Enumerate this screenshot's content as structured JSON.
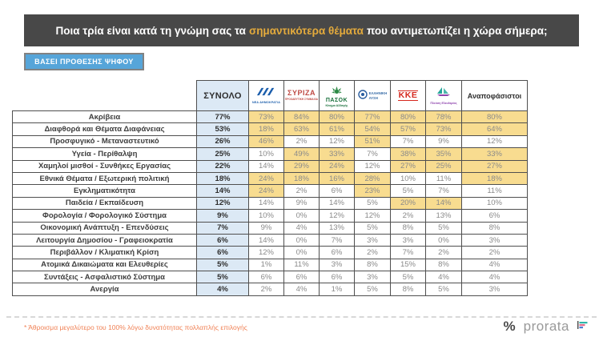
{
  "title": {
    "pre": "Ποια τρία είναι κατά τη γνώμη σας τα",
    "highlight": "σημαντικότερα θέματα",
    "post": "που αντιμετωπίζει η χώρα σήμερα;"
  },
  "filter_button_label": "ΒΑΣΕΙ ΠΡΟΘΕΣΗΣ ΨΗΦΟΥ",
  "colors": {
    "title_bar_bg": "#484848",
    "title_highlight": "#e3aa3c",
    "button_blue": "#56a5d9",
    "total_column_bg": "#dce9f5",
    "cell_highlight": "#f8dc90",
    "footnote_orange": "#f08155"
  },
  "table": {
    "total_label": "ΣΥΝΟΛΟ",
    "undecided_label": "Αναποφάσιστοι",
    "parties": [
      {
        "id": "nea-dimokratia",
        "caption": "ΝΕΑ ΔΗΜΟΚΡΑΤΙΑ"
      },
      {
        "id": "syriza",
        "label": "ΣΥΡΙΖΑ",
        "caption": "ΠΡΟΟΔΕΥΤΙΚΗ ΣΥΜΜΑΧΙΑ"
      },
      {
        "id": "pasok",
        "label": "ΠΑΣΟΚ",
        "caption": "Κίνημα Αλλαγής"
      },
      {
        "id": "elliniki-lysi",
        "label": "ΕΛΛΗΝΙΚΗ",
        "label2": "ΛΥΣΗ"
      },
      {
        "id": "kke",
        "label": "ΚΚΕ"
      },
      {
        "id": "plefsi-eleftherias",
        "label": "Πλεύση",
        "label2": "Ελευθερίας"
      }
    ],
    "rows": [
      {
        "topic": "Ακρίβεια",
        "total": "77%",
        "values": [
          "73%",
          "84%",
          "80%",
          "77%",
          "80%",
          "78%",
          "80%"
        ],
        "hl": [
          true,
          true,
          true,
          true,
          true,
          true,
          true
        ]
      },
      {
        "topic": "Διαφθορά και Θέματα Διαφάνειας",
        "total": "53%",
        "values": [
          "18%",
          "63%",
          "61%",
          "54%",
          "57%",
          "73%",
          "64%"
        ],
        "hl": [
          true,
          true,
          true,
          true,
          true,
          true,
          true
        ]
      },
      {
        "topic": "Προσφυγικό - Μεταναστευτικό",
        "total": "26%",
        "values": [
          "46%",
          "2%",
          "12%",
          "51%",
          "7%",
          "9%",
          "12%"
        ],
        "hl": [
          true,
          false,
          false,
          true,
          false,
          false,
          false
        ]
      },
      {
        "topic": "Υγεία - Περίθαλψη",
        "total": "25%",
        "values": [
          "10%",
          "49%",
          "33%",
          "7%",
          "38%",
          "35%",
          "33%"
        ],
        "hl": [
          false,
          true,
          true,
          false,
          true,
          true,
          true
        ]
      },
      {
        "topic": "Χαμηλοί μισθοί - Συνθήκες Εργασίας",
        "total": "22%",
        "values": [
          "14%",
          "29%",
          "24%",
          "12%",
          "27%",
          "25%",
          "27%"
        ],
        "hl": [
          false,
          true,
          true,
          false,
          true,
          true,
          true
        ]
      },
      {
        "topic": "Εθνικά Θέματα / Εξωτερική πολιτική",
        "total": "18%",
        "values": [
          "24%",
          "18%",
          "16%",
          "28%",
          "10%",
          "11%",
          "18%"
        ],
        "hl": [
          true,
          true,
          true,
          true,
          false,
          false,
          true
        ]
      },
      {
        "topic": "Εγκληματικότητα",
        "total": "14%",
        "values": [
          "24%",
          "2%",
          "6%",
          "23%",
          "5%",
          "7%",
          "11%"
        ],
        "hl": [
          true,
          false,
          false,
          true,
          false,
          false,
          false
        ]
      },
      {
        "topic": "Παιδεία / Εκπαίδευση",
        "total": "12%",
        "values": [
          "14%",
          "9%",
          "14%",
          "5%",
          "20%",
          "14%",
          "10%"
        ],
        "hl": [
          false,
          false,
          false,
          false,
          true,
          true,
          false
        ]
      },
      {
        "topic": "Φορολογία / Φορολογικό Σύστημα",
        "total": "9%",
        "values": [
          "10%",
          "0%",
          "12%",
          "12%",
          "2%",
          "13%",
          "6%"
        ],
        "hl": [
          false,
          false,
          false,
          false,
          false,
          false,
          false
        ]
      },
      {
        "topic": "Οικονομική Ανάπτυξη - Επενδύσεις",
        "total": "7%",
        "values": [
          "9%",
          "4%",
          "13%",
          "5%",
          "8%",
          "5%",
          "8%"
        ],
        "hl": [
          false,
          false,
          false,
          false,
          false,
          false,
          false
        ]
      },
      {
        "topic": "Λειτουργία Δημοσίου - Γραφειοκρατία",
        "total": "6%",
        "values": [
          "14%",
          "0%",
          "7%",
          "3%",
          "3%",
          "0%",
          "3%"
        ],
        "hl": [
          false,
          false,
          false,
          false,
          false,
          false,
          false
        ]
      },
      {
        "topic": "Περιβάλλον / Κλιματική Κρίση",
        "total": "6%",
        "values": [
          "12%",
          "0%",
          "6%",
          "2%",
          "7%",
          "2%",
          "2%"
        ],
        "hl": [
          false,
          false,
          false,
          false,
          false,
          false,
          false
        ]
      },
      {
        "topic": "Ατομικά Δικαιώματα και Ελευθερίες",
        "total": "5%",
        "values": [
          "1%",
          "11%",
          "3%",
          "8%",
          "15%",
          "8%",
          "4%"
        ],
        "hl": [
          false,
          false,
          false,
          false,
          false,
          false,
          false
        ]
      },
      {
        "topic": "Συντάξεις - Ασφαλιστικό Σύστημα",
        "total": "5%",
        "values": [
          "6%",
          "6%",
          "6%",
          "3%",
          "5%",
          "4%",
          "4%"
        ],
        "hl": [
          false,
          false,
          false,
          false,
          false,
          false,
          false
        ]
      },
      {
        "topic": "Ανεργία",
        "total": "4%",
        "values": [
          "2%",
          "4%",
          "1%",
          "5%",
          "8%",
          "5%",
          "3%"
        ],
        "hl": [
          false,
          false,
          false,
          false,
          false,
          false,
          false
        ]
      }
    ]
  },
  "footnote": "* Άθροισμα μεγαλύτερο του 100% λόγω δυνατότητας πολλαπλής επιλογής",
  "brand": {
    "symbol": "%",
    "name": "prorata"
  },
  "chart_data": {
    "type": "table",
    "title": "Ποια τρία είναι κατά τη γνώμη σας τα σημαντικότερα θέματα που αντιμετωπίζει η χώρα σήμερα;",
    "subtitle": "ΒΑΣΕΙ ΠΡΟΘΕΣΗΣ ΨΗΦΟΥ",
    "unit": "%",
    "categories": [
      "Ακρίβεια",
      "Διαφθορά και Θέματα Διαφάνειας",
      "Προσφυγικό - Μεταναστευτικό",
      "Υγεία - Περίθαλψη",
      "Χαμηλοί μισθοί - Συνθήκες Εργασίας",
      "Εθνικά Θέματα / Εξωτερική πολιτική",
      "Εγκληματικότητα",
      "Παιδεία / Εκπαίδευση",
      "Φορολογία / Φορολογικό Σύστημα",
      "Οικονομική Ανάπτυξη - Επενδύσεις",
      "Λειτουργία Δημοσίου - Γραφειοκρατία",
      "Περιβάλλον / Κλιματική Κρίση",
      "Ατομικά Δικαιώματα και Ελευθερίες",
      "Συντάξεις - Ασφαλιστικό Σύστημα",
      "Ανεργία"
    ],
    "series": [
      {
        "name": "ΣΥΝΟΛΟ",
        "values": [
          77,
          53,
          26,
          25,
          22,
          18,
          14,
          12,
          9,
          7,
          6,
          6,
          5,
          5,
          4
        ]
      },
      {
        "name": "ΝΕΑ ΔΗΜΟΚΡΑΤΙΑ",
        "values": [
          73,
          18,
          46,
          10,
          14,
          24,
          24,
          14,
          10,
          9,
          14,
          12,
          1,
          6,
          2
        ]
      },
      {
        "name": "ΣΥΡΙΖΑ",
        "values": [
          84,
          63,
          2,
          49,
          29,
          18,
          2,
          9,
          0,
          4,
          0,
          0,
          11,
          6,
          4
        ]
      },
      {
        "name": "ΠΑΣΟΚ",
        "values": [
          80,
          61,
          12,
          33,
          24,
          16,
          6,
          14,
          12,
          13,
          7,
          6,
          3,
          6,
          1
        ]
      },
      {
        "name": "ΕΛΛΗΝΙΚΗ ΛΥΣΗ",
        "values": [
          77,
          54,
          51,
          7,
          12,
          28,
          23,
          5,
          12,
          5,
          3,
          2,
          8,
          3,
          5
        ]
      },
      {
        "name": "ΚΚΕ",
        "values": [
          80,
          57,
          7,
          38,
          27,
          10,
          5,
          20,
          2,
          8,
          3,
          7,
          15,
          5,
          8
        ]
      },
      {
        "name": "ΠΛΕΥΣΗ ΕΛΕΥΘΕΡΙΑΣ",
        "values": [
          78,
          73,
          9,
          35,
          25,
          11,
          7,
          14,
          13,
          5,
          0,
          2,
          8,
          4,
          5
        ]
      },
      {
        "name": "Αναποφάσιστοι",
        "values": [
          80,
          64,
          12,
          33,
          27,
          18,
          11,
          10,
          6,
          8,
          3,
          2,
          4,
          4,
          3
        ]
      }
    ],
    "legend_position": "top",
    "note": "* Άθροισμα μεγαλύτερο του 100% λόγω δυνατότητας πολλαπλής επιλογής"
  }
}
